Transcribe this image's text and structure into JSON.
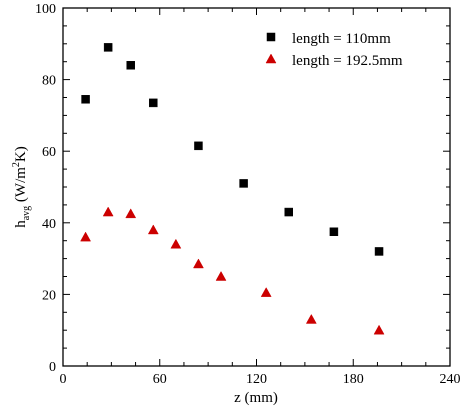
{
  "chart_data": {
    "type": "scatter",
    "xlabel": "z (mm)",
    "ylabel": {
      "base": "h",
      "subscript": "avg",
      "units_prefix": " (W/m",
      "units_superscript": "2",
      "units_suffix": "K)"
    },
    "xlim": [
      0,
      240
    ],
    "ylim": [
      0,
      100
    ],
    "xticks": [
      "0",
      "60",
      "120",
      "180",
      "240"
    ],
    "yticks": [
      "0",
      "20",
      "40",
      "60",
      "80",
      "100"
    ],
    "legend_position": "top-right",
    "grid": false,
    "series": [
      {
        "name": "length = 110mm",
        "marker": "square",
        "color": "#000000",
        "points": [
          [
            14,
            74.5
          ],
          [
            28,
            89
          ],
          [
            42,
            84
          ],
          [
            56,
            73.5
          ],
          [
            84,
            61.5
          ],
          [
            112,
            51
          ],
          [
            140,
            43
          ],
          [
            168,
            37.5
          ],
          [
            196,
            32
          ]
        ]
      },
      {
        "name": "length = 192.5mm",
        "marker": "triangle",
        "color": "#cc0000",
        "points": [
          [
            14,
            36
          ],
          [
            28,
            43
          ],
          [
            42,
            42.5
          ],
          [
            56,
            38
          ],
          [
            70,
            34
          ],
          [
            84,
            28.5
          ],
          [
            98,
            25
          ],
          [
            126,
            20.5
          ],
          [
            154,
            13
          ],
          [
            196,
            10
          ]
        ]
      }
    ]
  }
}
